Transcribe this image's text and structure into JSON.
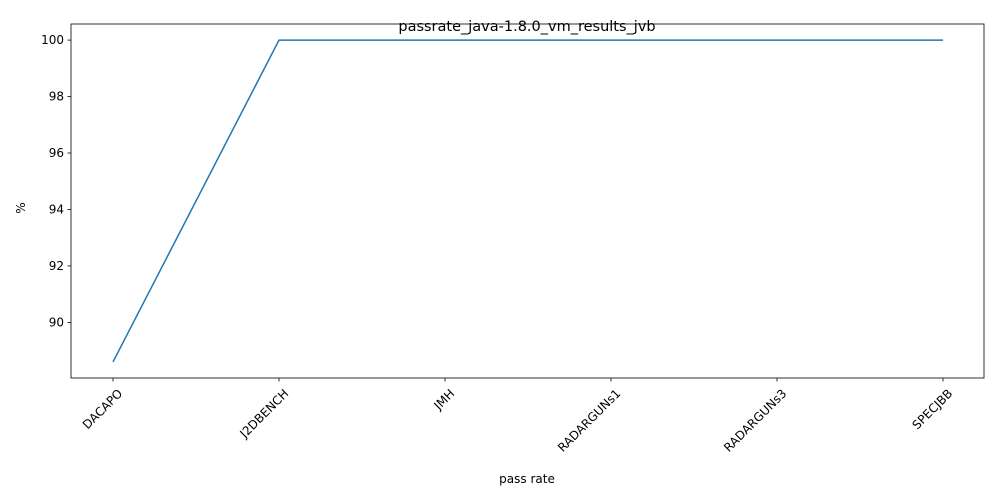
{
  "chart_data": {
    "type": "line",
    "title": "passrate_java-1.8.0_vm_results_jvb",
    "xlabel": "pass rate",
    "ylabel": "%",
    "categories": [
      "DACAPO",
      "J2DBENCH",
      "JMH",
      "RADARGUNs1",
      "RADARGUNs3",
      "SPECJBB"
    ],
    "series": [
      {
        "values": [
          88.6,
          100,
          100,
          100,
          100,
          100
        ],
        "color": "#1f77b4"
      }
    ],
    "yticks": [
      90,
      92,
      94,
      96,
      98,
      100
    ],
    "ylim": [
      88.03,
      100.57
    ],
    "grid": false,
    "legend": "none"
  }
}
